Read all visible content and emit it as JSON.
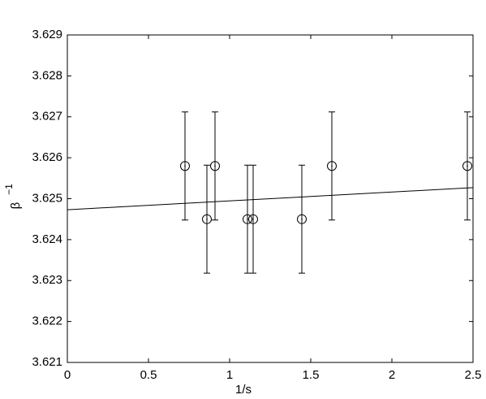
{
  "chart_data": {
    "type": "scatter",
    "x_label": "1/s",
    "y_label": "β",
    "y_label_sup": "−1",
    "x": [
      0.725,
      0.86,
      0.91,
      1.11,
      1.145,
      1.445,
      1.63,
      2.465
    ],
    "values": [
      3.6258,
      3.6245,
      3.6258,
      3.6245,
      3.6245,
      3.6245,
      3.6258,
      3.6258
    ],
    "errors": [
      0.00132,
      0.00132,
      0.00132,
      0.00132,
      0.00132,
      0.00132,
      0.00132,
      0.00132
    ],
    "color": "#000000",
    "fit": {
      "x": [
        0,
        2.5
      ],
      "values": [
        3.62473,
        3.62527
      ]
    },
    "xlim": [
      0,
      2.5
    ],
    "xticks": [
      0,
      0.5,
      1,
      1.5,
      2,
      2.5
    ],
    "ylim": [
      3.621,
      3.629
    ],
    "yticks": [
      3.621,
      3.622,
      3.623,
      3.624,
      3.625,
      3.626,
      3.627,
      3.628,
      3.629
    ],
    "grid": false
  }
}
